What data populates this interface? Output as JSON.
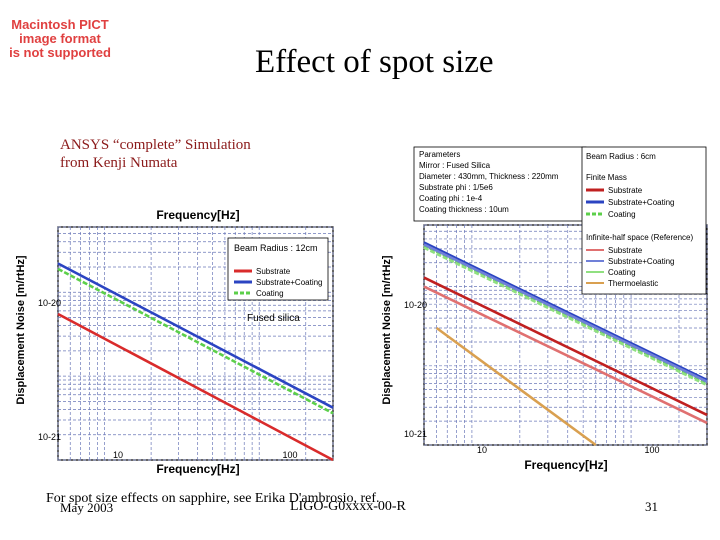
{
  "slide": {
    "title": "Effect of spot size",
    "pict_notice": [
      "Macintosh PICT",
      "image format",
      "is not supported"
    ],
    "subtitle": [
      "ANSYS “complete” Simulation",
      "from Kenji Numata"
    ],
    "footer_note": "For spot size effects on sapphire, see Erika D'ambrosio, ref.",
    "footer_date": "May 2003",
    "footer_doc": "LIGO-G0xxxx-00-R",
    "footer_page": "31"
  },
  "chart_data": [
    {
      "type": "line",
      "title": "Frequency[Hz]",
      "xlabel": "Frequency[Hz]",
      "ylabel": "Displacement Noise [m/rtHz]",
      "x_scale": "log",
      "y_scale": "log",
      "xlim": [
        5,
        300
      ],
      "ylim": [
        1e-21,
        6e-19
      ],
      "x_ticks": [
        "10",
        "100"
      ],
      "y_ticks": [
        "10-20",
        "10-21"
      ],
      "legend_title": "Beam Radius : 12cm",
      "legend_position": "top-right",
      "annotation": "Fused silica",
      "grid": true,
      "series": [
        {
          "name": "Substrate",
          "color": "#d92b2b",
          "x": [
            5,
            300
          ],
          "y": [
            5.5e-20,
            1e-21
          ]
        },
        {
          "name": "Substrate+Coating",
          "color": "#2b44c2",
          "x": [
            5,
            300
          ],
          "y": [
            2.2e-19,
            4.2e-21
          ]
        },
        {
          "name": "Coating",
          "color": "#5ccf4a",
          "x": [
            5,
            300
          ],
          "y": [
            1.9e-19,
            3.6e-21
          ]
        }
      ]
    },
    {
      "type": "line",
      "title": "",
      "xlabel": "Frequency[Hz]",
      "ylabel": "Displacement Noise [m/rtHz]",
      "x_scale": "log",
      "y_scale": "log",
      "xlim": [
        5,
        300
      ],
      "ylim": [
        1e-21,
        6e-19
      ],
      "x_ticks": [
        "10",
        "100"
      ],
      "y_ticks": [
        "10-20",
        "10-21"
      ],
      "grid": true,
      "parameters_box": {
        "heading": "Parameters",
        "lines": [
          "Mirror : Fused Silica",
          "Diameter : 430mm, Thickness : 220mm",
          "Substrate phi : 1/5e6",
          "Coating phi : 1e-4",
          "Coating thickness : 10um"
        ]
      },
      "legend_groups": [
        {
          "heading": "Beam Radius : 6cm",
          "subheading": "Finite Mass",
          "entries": [
            "Substrate",
            "Substrate+Coating",
            "Coating"
          ]
        },
        {
          "heading": "Infinite-half space (Reference)",
          "entries": [
            "Substrate",
            "Substrate+Coating",
            "Coating",
            "Thermoelastic"
          ]
        }
      ],
      "series": [
        {
          "name": "Substrate (Finite Mass)",
          "color": "#c02020",
          "x": [
            5,
            300
          ],
          "y": [
            1.3e-19,
            2.4e-21
          ]
        },
        {
          "name": "Substrate+Coating (Finite Mass)",
          "color": "#2b44c2",
          "x": [
            5,
            300
          ],
          "y": [
            3.6e-19,
            6.6e-21
          ]
        },
        {
          "name": "Coating (Finite Mass)",
          "color": "#5ccf4a",
          "x": [
            5,
            300
          ],
          "y": [
            3.3e-19,
            6e-21
          ]
        },
        {
          "name": "Substrate (Reference)",
          "color": "#e07070",
          "x": [
            5,
            300
          ],
          "y": [
            1e-19,
            1.9e-21
          ]
        },
        {
          "name": "Substrate+Coating (Reference)",
          "color": "#7080d8",
          "x": [
            5,
            300
          ],
          "y": [
            3.4e-19,
            6.3e-21
          ]
        },
        {
          "name": "Coating (Reference)",
          "color": "#90e080",
          "x": [
            5,
            300
          ],
          "y": [
            3.1e-19,
            5.7e-21
          ]
        },
        {
          "name": "Thermoelastic",
          "color": "#d9a050",
          "x": [
            6,
            60
          ],
          "y": [
            3e-20,
            1e-21
          ]
        }
      ]
    }
  ]
}
